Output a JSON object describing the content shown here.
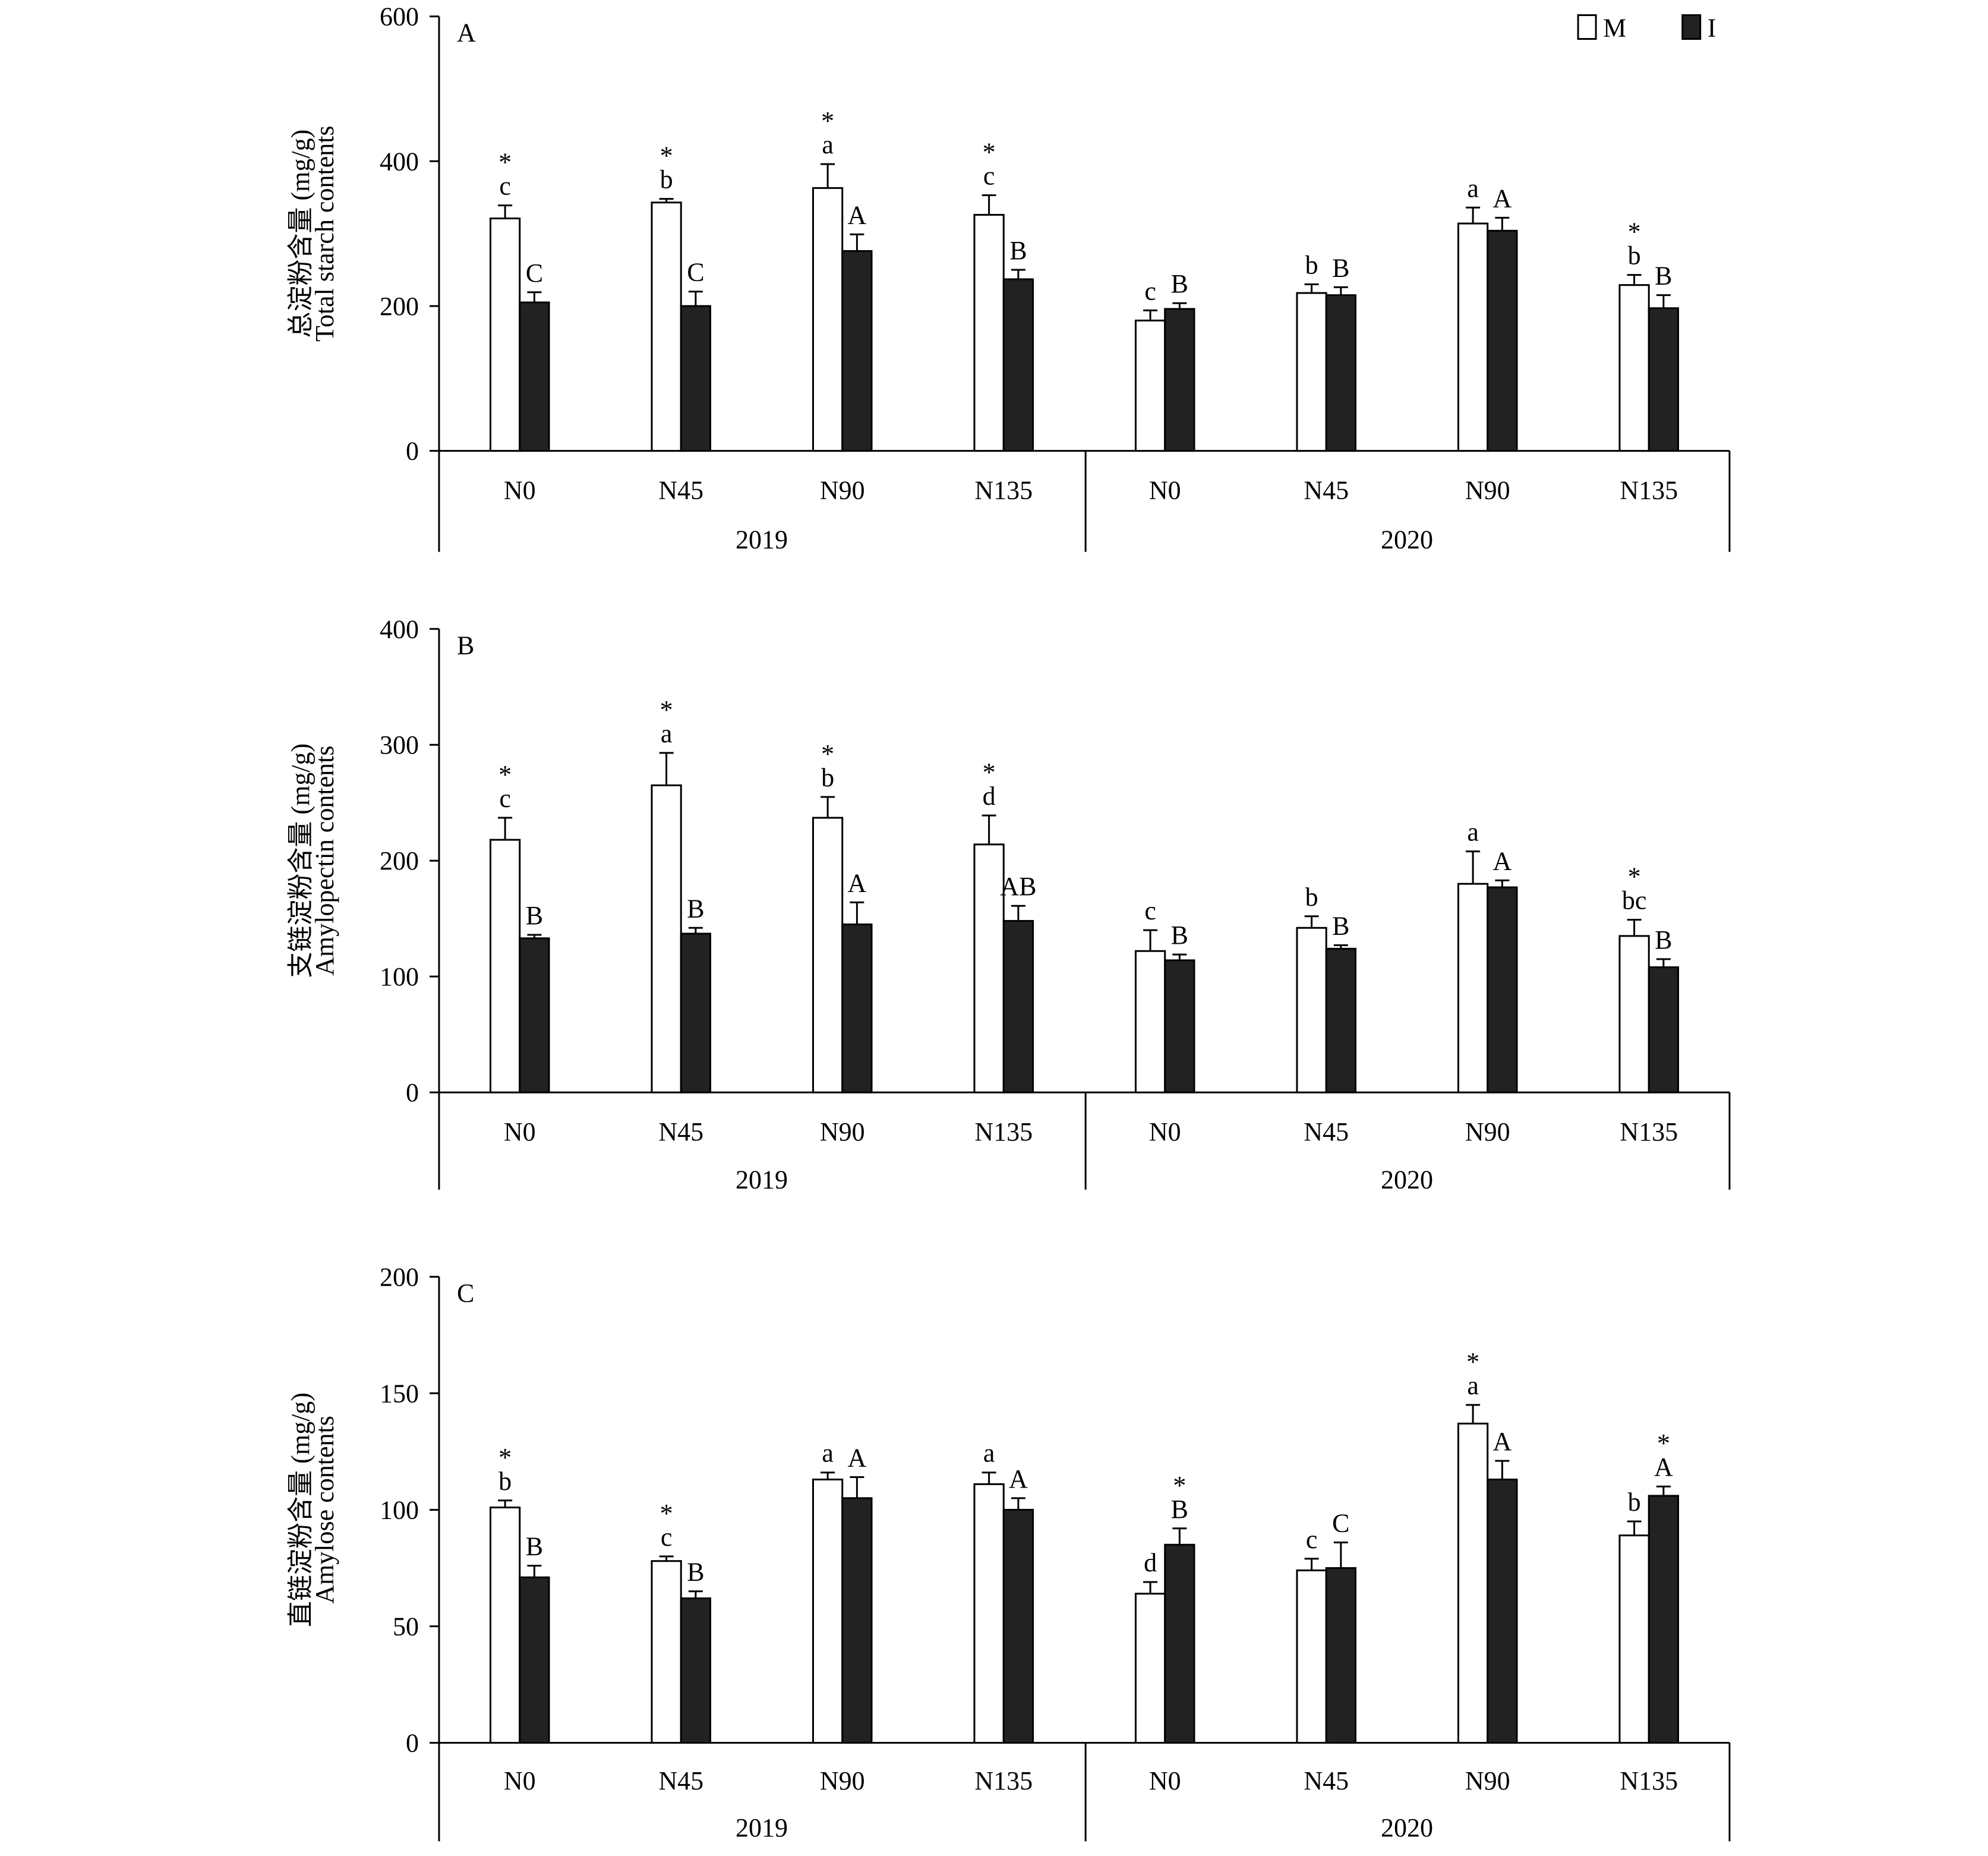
{
  "legend": {
    "items": [
      {
        "label": "M",
        "fill": "#ffffff"
      },
      {
        "label": "I",
        "fill": "#222222"
      }
    ]
  },
  "colors": {
    "M": "#ffffff",
    "I": "#222222",
    "axis": "#000000"
  },
  "chart_data": [
    {
      "type": "bar",
      "panel": "A",
      "ylabel_cn": "总淀粉含量 (mg/g)",
      "ylabel_en": "Total starch contents",
      "ylim": [
        0,
        600
      ],
      "yticks": [
        0,
        200,
        400,
        600
      ],
      "years": [
        "2019",
        "2020"
      ],
      "categories": [
        "N0",
        "N45",
        "N90",
        "N135",
        "N0",
        "N45",
        "N90",
        "N135"
      ],
      "series": [
        {
          "name": "M",
          "values": [
            321,
            343,
            363,
            326,
            180,
            218,
            314,
            229
          ],
          "errors": [
            18,
            5,
            33,
            27,
            14,
            12,
            22,
            14
          ],
          "letters": [
            "c",
            "b",
            "a",
            "c",
            "c",
            "b",
            "a",
            "b"
          ],
          "stars": [
            true,
            true,
            true,
            true,
            false,
            false,
            false,
            true
          ]
        },
        {
          "name": "I",
          "values": [
            205,
            200,
            276,
            237,
            196,
            215,
            304,
            197
          ],
          "errors": [
            14,
            20,
            23,
            13,
            8,
            11,
            18,
            18
          ],
          "letters": [
            "C",
            "C",
            "A",
            "B",
            "B",
            "B",
            "A",
            "B"
          ],
          "stars": [
            false,
            false,
            false,
            false,
            false,
            false,
            false,
            false
          ]
        }
      ]
    },
    {
      "type": "bar",
      "panel": "B",
      "ylabel_cn": "支链淀粉含量 (mg/g)",
      "ylabel_en": "Amylopectin contents",
      "ylim": [
        0,
        400
      ],
      "yticks": [
        0,
        100,
        200,
        300,
        400
      ],
      "years": [
        "2019",
        "2020"
      ],
      "categories": [
        "N0",
        "N45",
        "N90",
        "N135",
        "N0",
        "N45",
        "N90",
        "N135"
      ],
      "series": [
        {
          "name": "M",
          "values": [
            218,
            265,
            237,
            214,
            122,
            142,
            180,
            135
          ],
          "errors": [
            19,
            28,
            18,
            25,
            18,
            10,
            28,
            14
          ],
          "letters": [
            "c",
            "a",
            "b",
            "d",
            "c",
            "b",
            "a",
            "bc"
          ],
          "stars": [
            true,
            true,
            true,
            true,
            false,
            false,
            false,
            true
          ]
        },
        {
          "name": "I",
          "values": [
            133,
            137,
            145,
            148,
            114,
            124,
            177,
            108
          ],
          "errors": [
            3,
            5,
            19,
            13,
            5,
            3,
            6,
            7
          ],
          "letters": [
            "B",
            "B",
            "A",
            "AB",
            "B",
            "B",
            "A",
            "B"
          ],
          "stars": [
            false,
            false,
            false,
            false,
            false,
            false,
            false,
            false
          ]
        }
      ]
    },
    {
      "type": "bar",
      "panel": "C",
      "ylabel_cn": "直链淀粉含量 (mg/g)",
      "ylabel_en": "Amylose contents",
      "ylim": [
        0,
        200
      ],
      "yticks": [
        0,
        50,
        100,
        150,
        200
      ],
      "years": [
        "2019",
        "2020"
      ],
      "categories": [
        "N0",
        "N45",
        "N90",
        "N135",
        "N0",
        "N45",
        "N90",
        "N135"
      ],
      "series": [
        {
          "name": "M",
          "values": [
            101,
            78,
            113,
            111,
            64,
            74,
            137,
            89
          ],
          "errors": [
            3,
            2,
            3,
            5,
            5,
            5,
            8,
            6
          ],
          "letters": [
            "b",
            "c",
            "a",
            "a",
            "d",
            "c",
            "a",
            "b"
          ],
          "stars": [
            true,
            true,
            false,
            false,
            false,
            false,
            true,
            false
          ]
        },
        {
          "name": "I",
          "values": [
            71,
            62,
            105,
            100,
            85,
            75,
            113,
            106
          ],
          "errors": [
            5,
            3,
            9,
            5,
            7,
            11,
            8,
            4
          ],
          "letters": [
            "B",
            "B",
            "A",
            "A",
            "B",
            "C",
            "A",
            "A"
          ],
          "stars": [
            false,
            false,
            false,
            false,
            true,
            false,
            false,
            true
          ]
        }
      ]
    }
  ]
}
